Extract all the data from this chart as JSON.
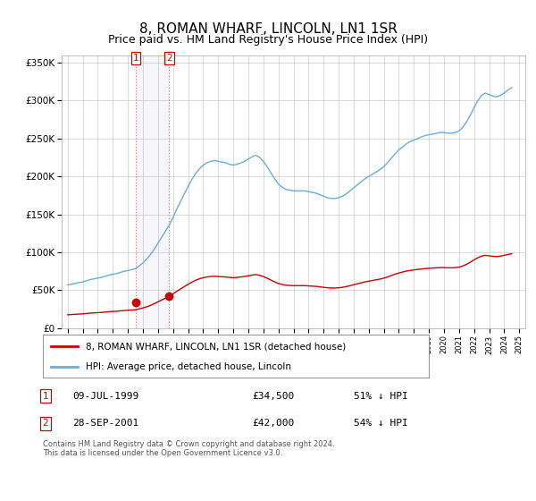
{
  "title": "8, ROMAN WHARF, LINCOLN, LN1 1SR",
  "subtitle": "Price paid vs. HM Land Registry's House Price Index (HPI)",
  "ylim": [
    0,
    360000
  ],
  "yticks": [
    0,
    50000,
    100000,
    150000,
    200000,
    250000,
    300000,
    350000
  ],
  "ytick_labels": [
    "£0",
    "£50K",
    "£100K",
    "£150K",
    "£200K",
    "£250K",
    "£300K",
    "£350K"
  ],
  "xlim_start": 1994.6,
  "xlim_end": 2025.4,
  "hpi_color": "#6baed6",
  "property_color": "#cc0000",
  "sale1_date": 1999.52,
  "sale1_price": 34500,
  "sale1_label": "1",
  "sale2_date": 2001.74,
  "sale2_price": 42000,
  "sale2_label": "2",
  "legend_property": "8, ROMAN WHARF, LINCOLN, LN1 1SR (detached house)",
  "legend_hpi": "HPI: Average price, detached house, Lincoln",
  "table_row1": [
    "1",
    "09-JUL-1999",
    "£34,500",
    "51% ↓ HPI"
  ],
  "table_row2": [
    "2",
    "28-SEP-2001",
    "£42,000",
    "54% ↓ HPI"
  ],
  "footer": "Contains HM Land Registry data © Crown copyright and database right 2024.\nThis data is licensed under the Open Government Licence v3.0.",
  "background_color": "#ffffff",
  "grid_color": "#cccccc",
  "title_fontsize": 11,
  "subtitle_fontsize": 9,
  "hpi_years": [
    1995,
    1995.25,
    1995.5,
    1995.75,
    1996,
    1996.25,
    1996.5,
    1996.75,
    1997,
    1997.25,
    1997.5,
    1997.75,
    1998,
    1998.25,
    1998.5,
    1998.75,
    1999,
    1999.25,
    1999.5,
    1999.75,
    2000,
    2000.25,
    2000.5,
    2000.75,
    2001,
    2001.25,
    2001.5,
    2001.75,
    2002,
    2002.25,
    2002.5,
    2002.75,
    2003,
    2003.25,
    2003.5,
    2003.75,
    2004,
    2004.25,
    2004.5,
    2004.75,
    2005,
    2005.25,
    2005.5,
    2005.75,
    2006,
    2006.25,
    2006.5,
    2006.75,
    2007,
    2007.25,
    2007.5,
    2007.75,
    2008,
    2008.25,
    2008.5,
    2008.75,
    2009,
    2009.25,
    2009.5,
    2009.75,
    2010,
    2010.25,
    2010.5,
    2010.75,
    2011,
    2011.25,
    2011.5,
    2011.75,
    2012,
    2012.25,
    2012.5,
    2012.75,
    2013,
    2013.25,
    2013.5,
    2013.75,
    2014,
    2014.25,
    2014.5,
    2014.75,
    2015,
    2015.25,
    2015.5,
    2015.75,
    2016,
    2016.25,
    2016.5,
    2016.75,
    2017,
    2017.25,
    2017.5,
    2017.75,
    2018,
    2018.25,
    2018.5,
    2018.75,
    2019,
    2019.25,
    2019.5,
    2019.75,
    2020,
    2020.25,
    2020.5,
    2020.75,
    2021,
    2021.25,
    2021.5,
    2021.75,
    2022,
    2022.25,
    2022.5,
    2022.75,
    2023,
    2023.25,
    2023.5,
    2023.75,
    2024,
    2024.25,
    2024.5
  ],
  "hpi_values": [
    57000,
    58000,
    59000,
    60000,
    61000,
    62500,
    64000,
    65000,
    66000,
    67000,
    68500,
    70000,
    71000,
    72000,
    73500,
    75000,
    76000,
    77000,
    78500,
    82000,
    86000,
    91000,
    97000,
    104000,
    112000,
    120000,
    128000,
    136000,
    146000,
    157000,
    167000,
    177000,
    187000,
    196000,
    204000,
    210000,
    215000,
    218000,
    220000,
    221000,
    220000,
    219000,
    218000,
    216000,
    215000,
    216000,
    218000,
    220000,
    223000,
    226000,
    228000,
    225000,
    220000,
    213000,
    205000,
    197000,
    190000,
    186000,
    183000,
    182000,
    181000,
    181000,
    181000,
    181000,
    180000,
    179000,
    178000,
    176000,
    174000,
    172000,
    171000,
    171000,
    172000,
    174000,
    177000,
    181000,
    185000,
    189000,
    193000,
    197000,
    200000,
    203000,
    206000,
    209000,
    213000,
    218000,
    224000,
    230000,
    235000,
    239000,
    243000,
    246000,
    248000,
    250000,
    252000,
    254000,
    255000,
    256000,
    257000,
    258000,
    258000,
    257000,
    257000,
    258000,
    260000,
    265000,
    272000,
    281000,
    291000,
    300000,
    307000,
    310000,
    308000,
    306000,
    305000,
    307000,
    310000,
    314000,
    317000
  ]
}
